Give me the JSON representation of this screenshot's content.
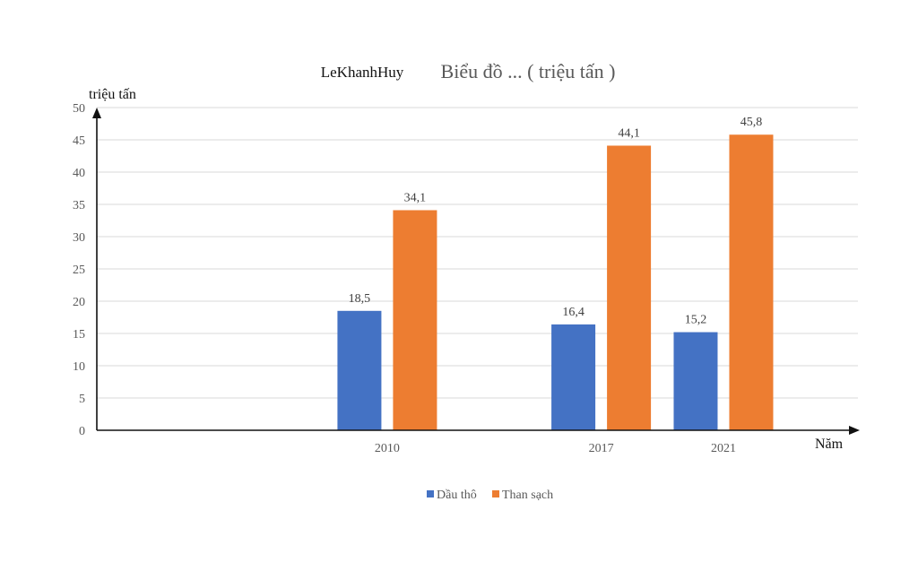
{
  "chart_data": {
    "type": "bar",
    "author": "LeKhanhHuy",
    "title": "Biểu đồ ... ( triệu tấn )",
    "xlabel": "Năm",
    "ylabel": "triệu tấn",
    "categories": [
      "2010",
      "2017",
      "2021"
    ],
    "x_numeric": [
      2010,
      2017,
      2021
    ],
    "x_range": [
      2000.5,
      2025.4
    ],
    "ylim": [
      0,
      50
    ],
    "yticks": [
      0,
      5,
      10,
      15,
      20,
      25,
      30,
      35,
      40,
      45,
      50
    ],
    "grid": true,
    "legend_position": "bottom",
    "series": [
      {
        "name": "Dầu thô",
        "color": "#4472c4",
        "values": [
          18.5,
          16.4,
          15.2
        ],
        "labels": [
          "18,5",
          "16,4",
          "15,2"
        ]
      },
      {
        "name": "Than sạch",
        "color": "#ed7d31",
        "values": [
          34.1,
          44.1,
          45.8
        ],
        "labels": [
          "34,1",
          "44,1",
          "45,8"
        ]
      }
    ]
  }
}
